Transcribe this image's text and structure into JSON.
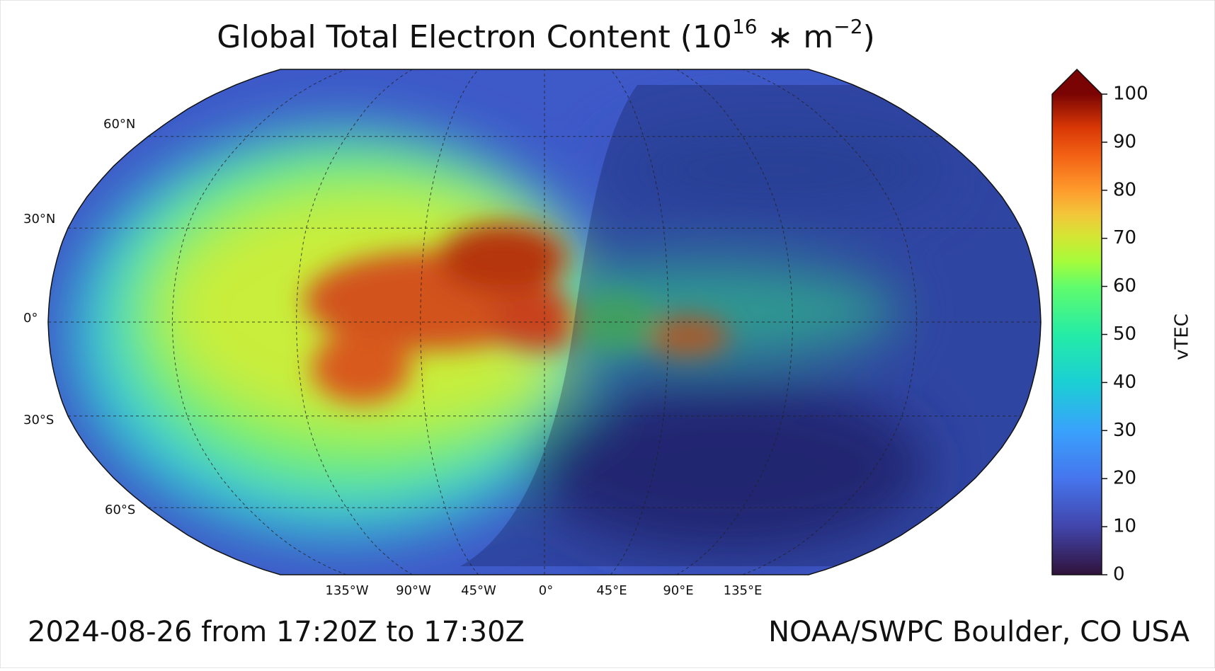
{
  "title_parts": [
    "Global Total Electron Content (10",
    "16",
    " ∗ m",
    "−2",
    ")"
  ],
  "map": {
    "projection": "robinson",
    "lat_labels": [
      "60°N",
      "30°N",
      "0°",
      "30°S",
      "60°S"
    ],
    "lon_labels": [
      "135°W",
      "90°W",
      "45°W",
      "0°",
      "45°E",
      "90°E",
      "135°E"
    ]
  },
  "colorbar": {
    "label": "vTEC",
    "lim": [
      0,
      100
    ],
    "ticks": [
      0,
      10,
      20,
      30,
      40,
      50,
      60,
      70,
      80,
      90,
      100
    ],
    "extend": "max"
  },
  "footer": {
    "left": "2024-08-26 from 17:20Z to 17:30Z",
    "right": "NOAA/SWPC Boulder, CO USA"
  }
}
